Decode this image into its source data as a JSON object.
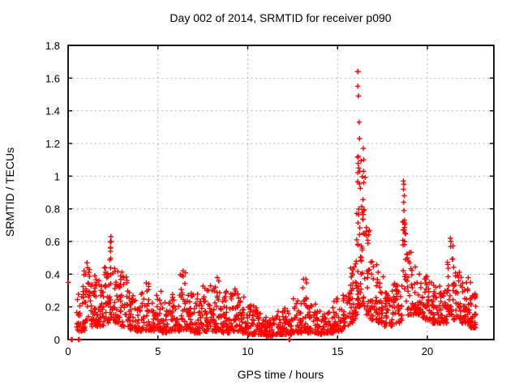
{
  "chart_data": {
    "type": "scatter",
    "title": "Day 002 of 2014, SRMTID for receiver p090",
    "xlabel": "GPS time / hours",
    "ylabel": "SRMTID / TECUs",
    "xlim": [
      0,
      23.7
    ],
    "ylim": [
      0,
      1.8
    ],
    "xtick_vals": [
      0,
      5,
      10,
      15,
      20
    ],
    "xtick_labels": [
      "0",
      "5",
      "10",
      "15",
      "20"
    ],
    "ytick_vals": [
      0,
      0.2,
      0.4,
      0.6,
      0.8,
      1.0,
      1.2,
      1.4,
      1.6,
      1.8
    ],
    "ytick_labels": [
      "0",
      "0.2",
      "0.4",
      "0.6",
      "0.8",
      "1",
      "1.2",
      "1.4",
      "1.6",
      "1.8"
    ],
    "grid": true,
    "legend_position": "none",
    "marker": {
      "shape": "plus",
      "size": 7,
      "color": "#ff0000"
    },
    "colors": {
      "marker": "#ff0000",
      "grid": "#b4b4b4",
      "frame": "#000000",
      "text": "#000000",
      "background": "#ffffff"
    },
    "series_name": "SRMTID",
    "outlier_points": [
      [
        0.02,
        0.35
      ],
      [
        0.18,
        0.0
      ],
      [
        0.23,
        0.0
      ],
      [
        0.58,
        0.0
      ],
      [
        0.62,
        0.0
      ],
      [
        12.3,
        0.0
      ],
      [
        12.34,
        0.0
      ],
      [
        1.05,
        0.47
      ],
      [
        1.08,
        0.44
      ],
      [
        2.38,
        0.63
      ],
      [
        2.4,
        0.6
      ],
      [
        2.36,
        0.56
      ],
      [
        6.4,
        0.42
      ],
      [
        8.3,
        0.38
      ],
      [
        13.1,
        0.37
      ],
      [
        16.12,
        1.64
      ],
      [
        16.14,
        1.64
      ],
      [
        16.13,
        1.55
      ],
      [
        16.16,
        1.49
      ],
      [
        16.2,
        1.33
      ],
      [
        16.22,
        1.23
      ],
      [
        16.15,
        1.12
      ],
      [
        16.18,
        1.05
      ],
      [
        16.43,
        1.17
      ],
      [
        16.45,
        1.1
      ],
      [
        16.44,
        1.03
      ],
      [
        16.46,
        0.96
      ],
      [
        18.66,
        0.97
      ],
      [
        18.69,
        0.95
      ],
      [
        18.67,
        0.92
      ],
      [
        18.71,
        0.88
      ],
      [
        18.68,
        0.84
      ],
      [
        18.7,
        0.79
      ],
      [
        18.72,
        0.73
      ],
      [
        18.66,
        0.67
      ],
      [
        18.73,
        0.6
      ],
      [
        21.28,
        0.62
      ],
      [
        21.31,
        0.6
      ],
      [
        21.3,
        0.57
      ],
      [
        22.4,
        0.35
      ]
    ],
    "band_envelope_bins_h0_h1_vmin_vmax_count": [
      [
        0.45,
        0.8,
        0.05,
        0.28,
        22
      ],
      [
        0.8,
        1.2,
        0.05,
        0.47,
        40
      ],
      [
        1.2,
        1.6,
        0.08,
        0.4,
        38
      ],
      [
        1.6,
        2.0,
        0.08,
        0.36,
        34
      ],
      [
        2.0,
        2.3,
        0.1,
        0.5,
        26
      ],
      [
        2.3,
        2.55,
        0.12,
        0.63,
        24
      ],
      [
        2.55,
        2.9,
        0.1,
        0.45,
        28
      ],
      [
        2.9,
        3.3,
        0.08,
        0.42,
        30
      ],
      [
        3.3,
        3.7,
        0.06,
        0.3,
        30
      ],
      [
        3.7,
        4.2,
        0.05,
        0.33,
        34
      ],
      [
        4.2,
        4.7,
        0.05,
        0.35,
        34
      ],
      [
        4.7,
        5.2,
        0.05,
        0.3,
        34
      ],
      [
        5.2,
        5.7,
        0.04,
        0.27,
        34
      ],
      [
        5.7,
        6.2,
        0.05,
        0.3,
        34
      ],
      [
        6.2,
        6.6,
        0.06,
        0.42,
        28
      ],
      [
        6.6,
        7.0,
        0.05,
        0.3,
        32
      ],
      [
        7.0,
        7.5,
        0.04,
        0.28,
        38
      ],
      [
        7.5,
        8.0,
        0.05,
        0.33,
        38
      ],
      [
        8.0,
        8.5,
        0.05,
        0.38,
        38
      ],
      [
        8.5,
        9.0,
        0.04,
        0.3,
        38
      ],
      [
        9.0,
        9.5,
        0.05,
        0.32,
        38
      ],
      [
        9.5,
        10.0,
        0.04,
        0.28,
        38
      ],
      [
        10.0,
        10.5,
        0.03,
        0.22,
        38
      ],
      [
        10.5,
        11.0,
        0.03,
        0.18,
        38
      ],
      [
        11.0,
        11.5,
        0.02,
        0.15,
        38
      ],
      [
        11.5,
        12.0,
        0.03,
        0.18,
        38
      ],
      [
        12.0,
        12.5,
        0.03,
        0.2,
        34
      ],
      [
        12.5,
        13.0,
        0.04,
        0.25,
        34
      ],
      [
        13.0,
        13.3,
        0.05,
        0.37,
        22
      ],
      [
        13.3,
        13.8,
        0.04,
        0.22,
        34
      ],
      [
        13.8,
        14.3,
        0.03,
        0.18,
        34
      ],
      [
        14.3,
        14.8,
        0.04,
        0.2,
        34
      ],
      [
        14.8,
        15.3,
        0.05,
        0.25,
        34
      ],
      [
        15.3,
        15.7,
        0.08,
        0.35,
        28
      ],
      [
        15.7,
        16.0,
        0.1,
        0.55,
        26
      ],
      [
        16.0,
        16.1,
        0.15,
        0.8,
        14
      ],
      [
        16.1,
        16.3,
        0.2,
        1.15,
        36
      ],
      [
        16.3,
        16.55,
        0.2,
        1.17,
        28
      ],
      [
        16.55,
        16.8,
        0.15,
        0.75,
        24
      ],
      [
        16.8,
        17.2,
        0.12,
        0.5,
        30
      ],
      [
        17.2,
        17.6,
        0.1,
        0.42,
        30
      ],
      [
        17.6,
        18.1,
        0.08,
        0.3,
        34
      ],
      [
        18.1,
        18.6,
        0.1,
        0.35,
        34
      ],
      [
        18.6,
        18.8,
        0.25,
        0.85,
        18
      ],
      [
        18.8,
        19.2,
        0.15,
        0.55,
        30
      ],
      [
        19.2,
        19.7,
        0.15,
        0.45,
        34
      ],
      [
        19.7,
        20.2,
        0.12,
        0.4,
        38
      ],
      [
        20.2,
        20.7,
        0.1,
        0.35,
        38
      ],
      [
        20.7,
        21.1,
        0.1,
        0.3,
        34
      ],
      [
        21.1,
        21.45,
        0.15,
        0.62,
        28
      ],
      [
        21.45,
        21.9,
        0.12,
        0.45,
        34
      ],
      [
        21.9,
        22.3,
        0.1,
        0.4,
        34
      ],
      [
        22.3,
        22.7,
        0.07,
        0.3,
        40
      ]
    ]
  }
}
